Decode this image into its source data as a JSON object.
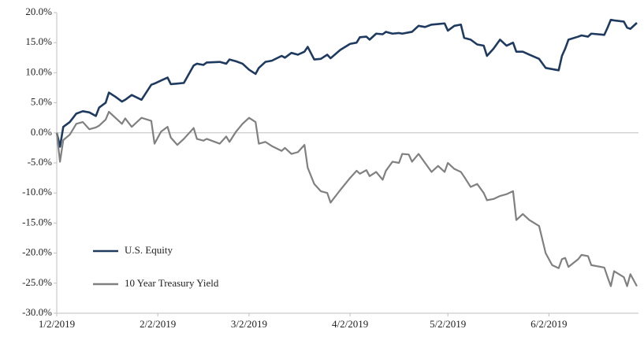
{
  "chart_data": {
    "type": "line",
    "x": [
      "2019-01-02",
      "2019-01-03",
      "2019-01-04",
      "2019-01-06",
      "2019-01-08",
      "2019-01-10",
      "2019-01-12",
      "2019-01-14",
      "2019-01-15",
      "2019-01-17",
      "2019-01-18",
      "2019-01-20",
      "2019-01-22",
      "2019-01-23",
      "2019-01-25",
      "2019-01-28",
      "2019-01-31",
      "2019-02-01",
      "2019-02-03",
      "2019-02-05",
      "2019-02-06",
      "2019-02-08",
      "2019-02-10",
      "2019-02-13",
      "2019-02-14",
      "2019-02-16",
      "2019-02-17",
      "2019-02-21",
      "2019-02-23",
      "2019-02-24",
      "2019-02-26",
      "2019-02-28",
      "2019-03-02",
      "2019-03-04",
      "2019-03-05",
      "2019-03-07",
      "2019-03-09",
      "2019-03-12",
      "2019-03-13",
      "2019-03-15",
      "2019-03-17",
      "2019-03-19",
      "2019-03-20",
      "2019-03-22",
      "2019-03-24",
      "2019-03-26",
      "2019-03-27",
      "2019-03-30",
      "2019-04-02",
      "2019-04-04",
      "2019-04-05",
      "2019-04-07",
      "2019-04-08",
      "2019-04-10",
      "2019-04-12",
      "2019-04-13",
      "2019-04-15",
      "2019-04-17",
      "2019-04-18",
      "2019-04-20",
      "2019-04-21",
      "2019-04-23",
      "2019-04-25",
      "2019-04-27",
      "2019-04-29",
      "2019-05-01",
      "2019-05-02",
      "2019-05-04",
      "2019-05-06",
      "2019-05-07",
      "2019-05-09",
      "2019-05-11",
      "2019-05-13",
      "2019-05-14",
      "2019-05-16",
      "2019-05-18",
      "2019-05-20",
      "2019-05-22",
      "2019-05-23",
      "2019-05-25",
      "2019-05-27",
      "2019-05-30",
      "2019-06-01",
      "2019-06-03",
      "2019-06-05",
      "2019-06-06",
      "2019-06-07",
      "2019-06-08",
      "2019-06-11",
      "2019-06-12",
      "2019-06-14",
      "2019-06-15",
      "2019-06-19",
      "2019-06-20",
      "2019-06-21",
      "2019-06-22",
      "2019-06-25",
      "2019-06-26",
      "2019-06-27",
      "2019-06-29"
    ],
    "series": [
      {
        "name": "U.S. Equity",
        "color": "#1f3a5f",
        "values": [
          0,
          -2.3,
          1.0,
          1.8,
          3.2,
          3.6,
          3.4,
          2.8,
          4.2,
          5.0,
          6.7,
          6.0,
          5.2,
          5.5,
          6.3,
          5.5,
          8.0,
          8.2,
          8.7,
          9.2,
          8.1,
          8.2,
          8.3,
          11.2,
          11.5,
          11.3,
          11.7,
          11.8,
          11.5,
          12.2,
          11.9,
          11.5,
          10.5,
          9.8,
          10.8,
          11.8,
          12.0,
          12.8,
          12.5,
          13.3,
          13.0,
          13.5,
          14.3,
          12.2,
          12.3,
          13.0,
          12.4,
          13.8,
          14.8,
          15.0,
          15.9,
          16.0,
          15.5,
          16.5,
          16.4,
          16.8,
          16.5,
          16.6,
          16.5,
          16.7,
          16.8,
          17.8,
          17.6,
          18.0,
          18.1,
          18.2,
          17.0,
          17.8,
          18.0,
          15.8,
          15.5,
          14.7,
          14.5,
          12.8,
          14.0,
          15.5,
          14.5,
          15.0,
          13.5,
          13.5,
          13.0,
          12.3,
          10.8,
          10.6,
          10.4,
          12.8,
          14.0,
          15.5,
          16.0,
          16.2,
          16.0,
          16.5,
          16.3,
          17.5,
          18.8,
          18.7,
          18.5,
          17.5,
          17.3,
          18.3
        ]
      },
      {
        "name": "10 Year Treasury Yield",
        "color": "#808080",
        "values": [
          0,
          -4.8,
          -1.2,
          -0.3,
          1.5,
          1.8,
          0.6,
          0.9,
          1.2,
          2.2,
          3.5,
          2.5,
          1.5,
          2.4,
          1.0,
          2.5,
          2.0,
          -1.8,
          0.2,
          1.0,
          -0.8,
          -2.0,
          -1.0,
          0.8,
          -1.0,
          -1.3,
          -1.0,
          -1.8,
          -0.6,
          -1.5,
          0.2,
          1.5,
          2.5,
          1.8,
          -1.8,
          -1.5,
          -2.2,
          -3.0,
          -2.5,
          -3.5,
          -3.2,
          -2.0,
          -5.8,
          -8.5,
          -9.7,
          -10.0,
          -11.6,
          -9.5,
          -7.5,
          -6.3,
          -6.8,
          -6.2,
          -7.2,
          -6.5,
          -7.8,
          -6.3,
          -4.8,
          -5.0,
          -3.5,
          -3.6,
          -4.8,
          -3.5,
          -5.0,
          -6.5,
          -5.5,
          -6.5,
          -5.0,
          -6.0,
          -6.5,
          -7.3,
          -9.0,
          -8.5,
          -10.0,
          -11.2,
          -11.0,
          -10.5,
          -10.2,
          -9.7,
          -14.5,
          -13.5,
          -14.5,
          -15.5,
          -20.0,
          -22.0,
          -22.5,
          -21.0,
          -20.8,
          -22.3,
          -21.0,
          -20.3,
          -20.5,
          -22.0,
          -22.4,
          -24.0,
          -25.5,
          -23.0,
          -24.0,
          -25.5,
          -23.5,
          -25.5
        ]
      }
    ],
    "xlim": [
      "2019-01-02",
      "2019-06-29"
    ],
    "xticks": [
      {
        "value": "2019-01-02",
        "label": "1/2/2019"
      },
      {
        "value": "2019-02-02",
        "label": "2/2/2019"
      },
      {
        "value": "2019-03-02",
        "label": "3/2/2019"
      },
      {
        "value": "2019-04-02",
        "label": "4/2/2019"
      },
      {
        "value": "2019-05-02",
        "label": "5/2/2019"
      },
      {
        "value": "2019-06-02",
        "label": "6/2/2019"
      }
    ],
    "ylim": [
      -30,
      20
    ],
    "yticks": [
      {
        "value": 20,
        "label": "20.0%"
      },
      {
        "value": 15,
        "label": "15.0%"
      },
      {
        "value": 10,
        "label": "10.0%"
      },
      {
        "value": 5,
        "label": "5.0%"
      },
      {
        "value": 0,
        "label": "0.0%"
      },
      {
        "value": -5,
        "label": "-5.0%"
      },
      {
        "value": -10,
        "label": "-10.0%"
      },
      {
        "value": -15,
        "label": "-15.0%"
      },
      {
        "value": -20,
        "label": "-20.0%"
      },
      {
        "value": -25,
        "label": "-25.0%"
      },
      {
        "value": -30,
        "label": "-30.0%"
      }
    ],
    "grid": false,
    "legend": "lower left"
  }
}
